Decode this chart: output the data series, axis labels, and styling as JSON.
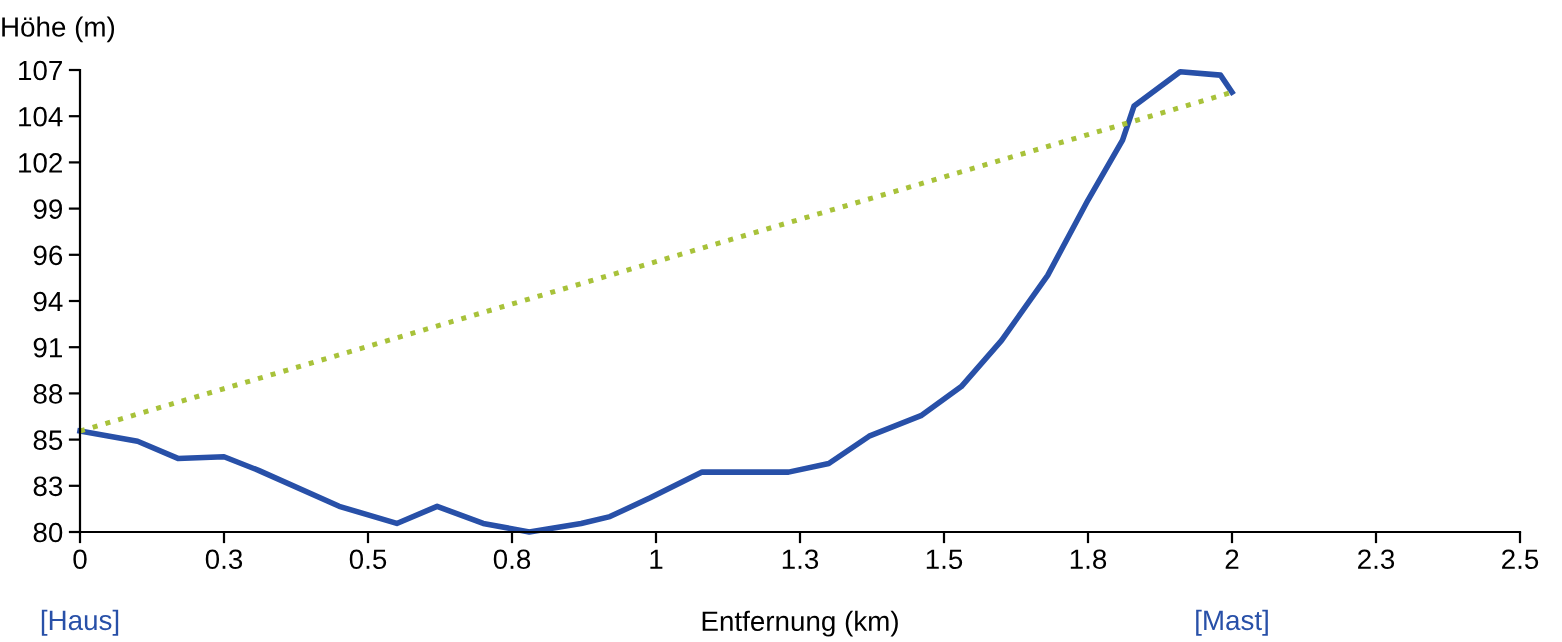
{
  "chart_data": {
    "type": "line",
    "ylabel": "Höhe (m)",
    "xlabel": "Entfernung (km)",
    "xlim": [
      0,
      2.5
    ],
    "xticks": [
      0,
      {
        "value": 0.25,
        "label": "0.3"
      },
      0.5,
      {
        "value": 0.75,
        "label": "0.8"
      },
      1,
      {
        "value": 1.25,
        "label": "1.3"
      },
      1.5,
      {
        "value": 1.75,
        "label": "1.8"
      },
      2,
      {
        "value": 2.25,
        "label": "2.3"
      },
      2.5
    ],
    "ylim": [
      80,
      107
    ],
    "yticks": [
      80,
      {
        "value": 82.7,
        "label": "83"
      },
      {
        "value": 85.4,
        "label": "85"
      },
      {
        "value": 88.1,
        "label": "88"
      },
      {
        "value": 90.8,
        "label": "91"
      },
      {
        "value": 93.5,
        "label": "94"
      },
      {
        "value": 96.2,
        "label": "96"
      },
      {
        "value": 98.9,
        "label": "99"
      },
      {
        "value": 101.6,
        "label": "102"
      },
      {
        "value": 104.3,
        "label": "104"
      },
      107
    ],
    "grid": false,
    "marker": "none",
    "series": [
      {
        "color": "#2850a8",
        "line_style": "solid",
        "x": [
          0,
          0.1,
          0.17,
          0.25,
          0.31,
          0.45,
          0.55,
          0.62,
          0.7,
          0.78,
          0.87,
          0.92,
          0.99,
          1.08,
          1.23,
          1.3,
          1.37,
          1.46,
          1.53,
          1.6,
          1.68,
          1.75,
          1.81,
          1.83,
          1.91,
          1.98,
          2.0
        ],
        "values": [
          85.9,
          85.3,
          84.3,
          84.4,
          83.6,
          81.5,
          80.5,
          81.5,
          80.5,
          80.0,
          80.5,
          80.9,
          82.0,
          83.5,
          83.5,
          84.0,
          85.6,
          86.8,
          88.5,
          91.2,
          95.0,
          99.4,
          102.9,
          104.9,
          106.9,
          106.7,
          105.7
        ]
      },
      {
        "color": "#a8c23a",
        "line_style": "dotted",
        "x": [
          0,
          2.0
        ],
        "values": [
          85.9,
          105.7
        ]
      }
    ],
    "annotations": [
      "[Haus]",
      "[Mast]"
    ]
  }
}
